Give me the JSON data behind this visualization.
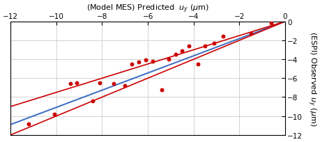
{
  "xlabel_top": "(Model MES) Predicted  $u_y$ (μm)",
  "ylabel_right": "(ESPI) Observed $u_y$ (μm)",
  "xlim": [
    -12,
    0
  ],
  "ylim": [
    -12,
    0
  ],
  "xticks": [
    -12,
    -10,
    -8,
    -6,
    -4,
    -2,
    0
  ],
  "yticks": [
    0,
    -2,
    -4,
    -6,
    -8,
    -10,
    -12
  ],
  "scatter_x": [
    -11.2,
    -10.1,
    -9.4,
    -9.1,
    -8.4,
    -8.1,
    -7.5,
    -7.0,
    -6.7,
    -6.4,
    -6.1,
    -5.8,
    -5.4,
    -5.1,
    -4.8,
    -4.5,
    -4.2,
    -3.8,
    -3.5,
    -3.1,
    -2.7,
    -1.5,
    -0.6
  ],
  "scatter_y": [
    -10.8,
    -9.8,
    -6.6,
    -6.5,
    -8.4,
    -6.5,
    -6.6,
    -6.8,
    -4.5,
    -4.3,
    -4.1,
    -4.2,
    -7.2,
    -4.0,
    -3.5,
    -3.1,
    -2.6,
    -4.5,
    -2.6,
    -2.3,
    -1.6,
    -1.3,
    -0.2
  ],
  "blue_line_x": [
    -12,
    0
  ],
  "blue_line_y": [
    -10.9,
    0
  ],
  "red_line1_x": [
    -12,
    0
  ],
  "red_line1_y": [
    -9.0,
    0
  ],
  "red_line2_x": [
    -12,
    0
  ],
  "red_line2_y": [
    -12.0,
    0
  ],
  "scatter_color": "#cc0000",
  "scatter_size": 18,
  "blue_color": "#4472c4",
  "red_color": "#cc0000",
  "grid_color": "#cccccc",
  "bg_color": "#ffffff",
  "tick_fontsize": 7.5,
  "label_fontsize": 8
}
